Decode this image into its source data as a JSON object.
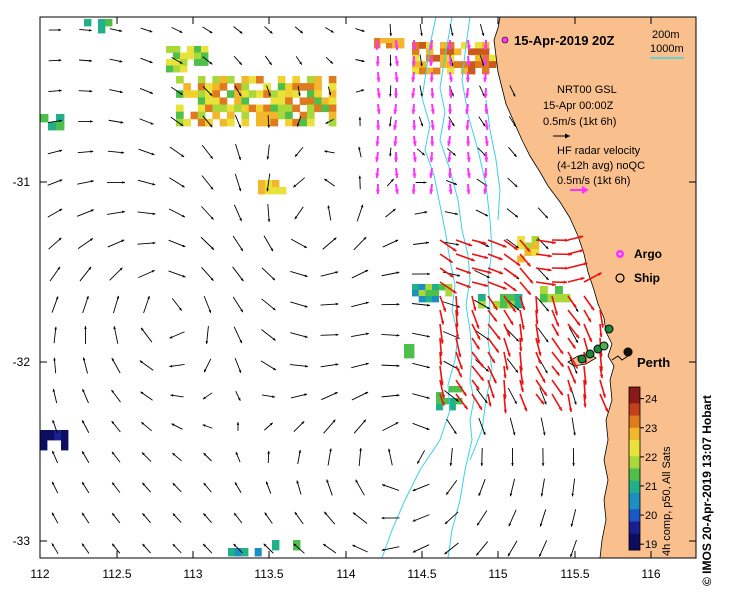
{
  "title": "15-Apr-2019 20Z",
  "credit": "© IMOS 20-Apr-2019 13:07 Hobart",
  "axes": {
    "x_ticks": [
      "112",
      "112.5",
      "113",
      "113.5",
      "114",
      "114.5",
      "115",
      "115.5",
      "116"
    ],
    "y_ticks": [
      "-31",
      "-32",
      "-33"
    ]
  },
  "isobath_legend": [
    "200m",
    "1000m"
  ],
  "gsl_legend": {
    "line1": "NRT00 GSL",
    "line2": "15-Apr 00:00Z",
    "scale": "0.5m/s (1kt 6h)"
  },
  "hf_legend": {
    "line1": "HF radar velocity",
    "line2": "(4-12h avg) noQC",
    "scale": "0.5m/s (1kt 6h)"
  },
  "markers": {
    "argo": "Argo",
    "ship": "Ship",
    "city": "Perth"
  },
  "colorbar": {
    "label": "4h comp, p50, All Sats",
    "ticks": [
      "24",
      "23",
      "22",
      "21",
      "20",
      "19"
    ],
    "min": 18.8,
    "max": 24.4
  },
  "colors": {
    "land": "#f9c08e",
    "isobath": "#3cd2e6",
    "gsl_arrow": "#000000",
    "hf_arrow_north": "#ff33ff",
    "hf_arrow_south": "#ee1111"
  }
}
